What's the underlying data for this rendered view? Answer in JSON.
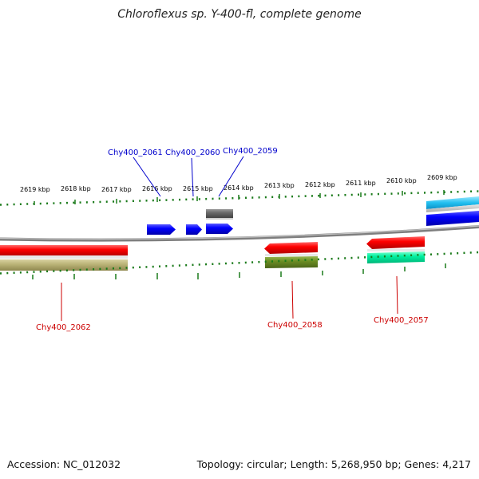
{
  "title": "Chloroflexus sp. Y-400-fl, complete genome",
  "footer": {
    "accession": "Accession: NC_012032",
    "summary": "Topology: circular; Length: 5,268,950 bp; Genes: 4,217"
  },
  "kbp_labels": [
    "2619 kbp",
    "2618 kbp",
    "2617 kbp",
    "2616 kbp",
    "2615 kbp",
    "2614 kbp",
    "2613 kbp",
    "2612 kbp",
    "2611 kbp",
    "2610 kbp",
    "2609 kbp"
  ],
  "gene_labels": {
    "g2061": "Chy400_2061",
    "g2060": "Chy400_2060",
    "g2059": "Chy400_2059",
    "g2062": "Chy400_2062",
    "g2058": "Chy400_2058",
    "g2057": "Chy400_2057"
  },
  "colors": {
    "forward_label": "#0000cc",
    "reverse_label": "#cc0000",
    "tick": "#1a7a1a",
    "backbone": "#888888"
  }
}
